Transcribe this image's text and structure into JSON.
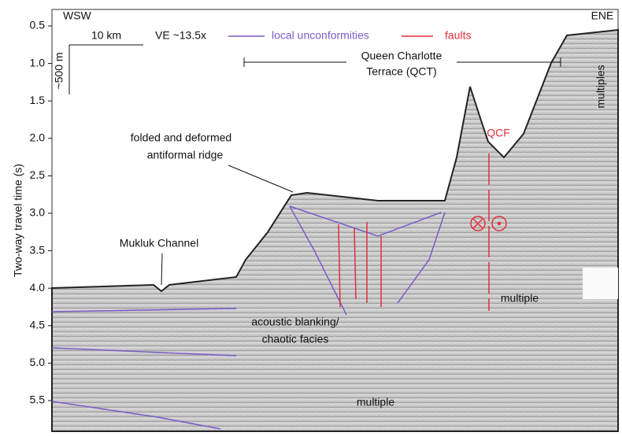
{
  "figure": {
    "y_axis": {
      "label": "Two-way travel time (s)",
      "ticks": [
        "0.5",
        "1.0",
        "1.5",
        "2.0",
        "2.5",
        "3.0",
        "3.5",
        "4.0",
        "4.5",
        "5.0",
        "5.5"
      ]
    },
    "direction_left": "WSW",
    "direction_right": "ENE",
    "scale_horizontal": "10 km",
    "scale_vertical": "~500 m",
    "vertical_exaggeration": "VE ~13.5x",
    "legend": [
      "local unconformities",
      "faults"
    ],
    "annotations": {
      "qct_line1": "Queen Charlotte",
      "qct_line2": "Terrace (QCT)",
      "multiples": "multiples",
      "qcf": "QCF",
      "ridge_line1": "folded and deformed",
      "ridge_line2": "antiformal ridge",
      "channel": "Mukluk Channel",
      "blanking_line1": "acoustic blanking/",
      "blanking_line2": "chaotic facies",
      "multiple_right": "multiple",
      "multiple_bottom": "multiple"
    }
  }
}
